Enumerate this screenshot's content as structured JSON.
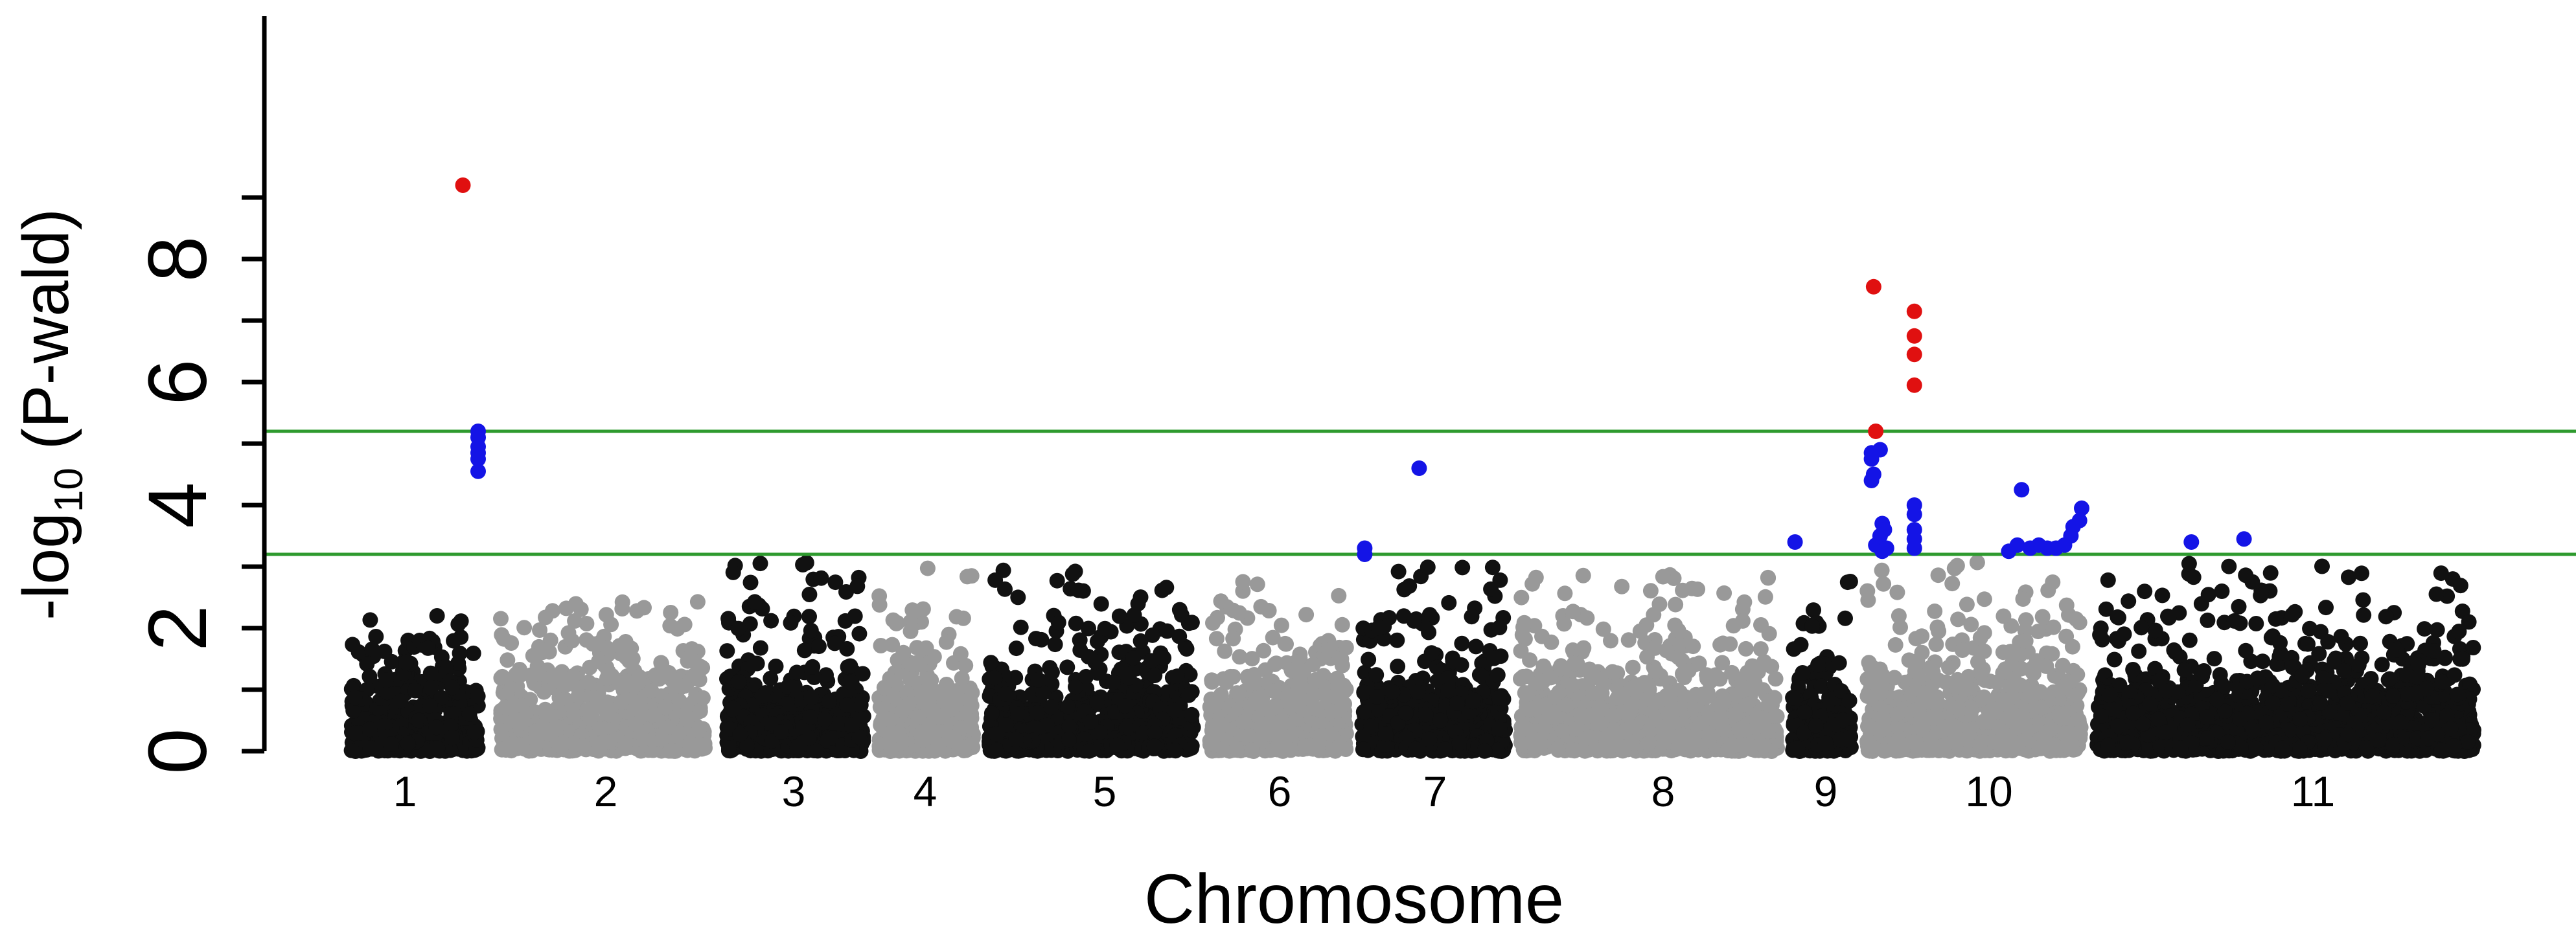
{
  "chart_data": {
    "type": "scatter",
    "title": "",
    "xlabel": "Chromosome",
    "ylabel": {
      "prefix": "-log",
      "subscript": "10",
      "suffix": " (P-wald)"
    },
    "ylim": [
      0,
      9.6
    ],
    "yticks": [
      "0",
      "2",
      "4",
      "6",
      "8"
    ],
    "grid": false,
    "legend": "none",
    "thresholds": [
      {
        "value": 5.2,
        "color": "#2e9a2e"
      },
      {
        "value": 3.2,
        "color": "#2e9a2e"
      }
    ],
    "colors": {
      "chrom_dark": "#111111",
      "chrom_light": "#999999",
      "significant": "#e01010",
      "suggestive": "#1414e6",
      "threshold": "#2e9a2e"
    },
    "chromosomes": [
      {
        "label": "1",
        "shade": "dark"
      },
      {
        "label": "2",
        "shade": "light"
      },
      {
        "label": "3",
        "shade": "dark"
      },
      {
        "label": "4",
        "shade": "light"
      },
      {
        "label": "5",
        "shade": "dark"
      },
      {
        "label": "6",
        "shade": "light"
      },
      {
        "label": "7",
        "shade": "dark"
      },
      {
        "label": "8",
        "shade": "light"
      },
      {
        "label": "9",
        "shade": "dark"
      },
      {
        "label": "10",
        "shade": "light"
      },
      {
        "label": "11",
        "shade": "dark"
      }
    ],
    "background_cap": {
      "1": 2.4,
      "2": 2.5,
      "3": 3.1,
      "4": 3.1,
      "5": 3.1,
      "6": 2.8,
      "7": 3.2,
      "8": 2.9,
      "9": 3.0,
      "10": 3.2,
      "11": 3.1
    },
    "highlighted_points": [
      {
        "chrom": "1",
        "rel_pos": 0.88,
        "y": 9.2,
        "class": "significant"
      },
      {
        "chrom": "1",
        "rel_pos": 1.0,
        "y": 5.2,
        "class": "suggestive"
      },
      {
        "chrom": "1",
        "rel_pos": 1.0,
        "y": 5.1,
        "class": "suggestive"
      },
      {
        "chrom": "1",
        "rel_pos": 1.0,
        "y": 4.95,
        "class": "suggestive"
      },
      {
        "chrom": "1",
        "rel_pos": 1.0,
        "y": 4.85,
        "class": "suggestive"
      },
      {
        "chrom": "1",
        "rel_pos": 1.0,
        "y": 4.75,
        "class": "suggestive"
      },
      {
        "chrom": "1",
        "rel_pos": 1.0,
        "y": 4.55,
        "class": "suggestive"
      },
      {
        "chrom": "7",
        "rel_pos": 0.02,
        "y": 3.3,
        "class": "suggestive"
      },
      {
        "chrom": "7",
        "rel_pos": 0.02,
        "y": 3.2,
        "class": "suggestive"
      },
      {
        "chrom": "7",
        "rel_pos": 0.4,
        "y": 4.6,
        "class": "suggestive"
      },
      {
        "chrom": "9",
        "rel_pos": 0.04,
        "y": 3.4,
        "class": "suggestive"
      },
      {
        "chrom": "10",
        "rel_pos": 0.03,
        "y": 7.55,
        "class": "significant"
      },
      {
        "chrom": "10",
        "rel_pos": 0.04,
        "y": 5.2,
        "class": "significant"
      },
      {
        "chrom": "10",
        "rel_pos": 0.22,
        "y": 7.15,
        "class": "significant"
      },
      {
        "chrom": "10",
        "rel_pos": 0.22,
        "y": 6.75,
        "class": "significant"
      },
      {
        "chrom": "10",
        "rel_pos": 0.22,
        "y": 6.45,
        "class": "significant"
      },
      {
        "chrom": "10",
        "rel_pos": 0.22,
        "y": 5.95,
        "class": "significant"
      },
      {
        "chrom": "10",
        "rel_pos": 0.02,
        "y": 4.85,
        "class": "suggestive"
      },
      {
        "chrom": "10",
        "rel_pos": 0.02,
        "y": 4.75,
        "class": "suggestive"
      },
      {
        "chrom": "10",
        "rel_pos": 0.06,
        "y": 4.9,
        "class": "suggestive"
      },
      {
        "chrom": "10",
        "rel_pos": 0.03,
        "y": 4.5,
        "class": "suggestive"
      },
      {
        "chrom": "10",
        "rel_pos": 0.02,
        "y": 4.4,
        "class": "suggestive"
      },
      {
        "chrom": "10",
        "rel_pos": 0.07,
        "y": 3.7,
        "class": "suggestive"
      },
      {
        "chrom": "10",
        "rel_pos": 0.08,
        "y": 3.6,
        "class": "suggestive"
      },
      {
        "chrom": "10",
        "rel_pos": 0.06,
        "y": 3.5,
        "class": "suggestive"
      },
      {
        "chrom": "10",
        "rel_pos": 0.04,
        "y": 3.35,
        "class": "suggestive"
      },
      {
        "chrom": "10",
        "rel_pos": 0.07,
        "y": 3.25,
        "class": "suggestive"
      },
      {
        "chrom": "10",
        "rel_pos": 0.09,
        "y": 3.3,
        "class": "suggestive"
      },
      {
        "chrom": "10",
        "rel_pos": 0.22,
        "y": 4.0,
        "class": "suggestive"
      },
      {
        "chrom": "10",
        "rel_pos": 0.22,
        "y": 3.85,
        "class": "suggestive"
      },
      {
        "chrom": "10",
        "rel_pos": 0.22,
        "y": 3.6,
        "class": "suggestive"
      },
      {
        "chrom": "10",
        "rel_pos": 0.22,
        "y": 3.45,
        "class": "suggestive"
      },
      {
        "chrom": "10",
        "rel_pos": 0.22,
        "y": 3.3,
        "class": "suggestive"
      },
      {
        "chrom": "10",
        "rel_pos": 0.72,
        "y": 4.25,
        "class": "suggestive"
      },
      {
        "chrom": "10",
        "rel_pos": 0.66,
        "y": 3.25,
        "class": "suggestive"
      },
      {
        "chrom": "10",
        "rel_pos": 0.7,
        "y": 3.35,
        "class": "suggestive"
      },
      {
        "chrom": "10",
        "rel_pos": 0.76,
        "y": 3.3,
        "class": "suggestive"
      },
      {
        "chrom": "10",
        "rel_pos": 0.8,
        "y": 3.35,
        "class": "suggestive"
      },
      {
        "chrom": "10",
        "rel_pos": 0.84,
        "y": 3.3,
        "class": "suggestive"
      },
      {
        "chrom": "10",
        "rel_pos": 0.88,
        "y": 3.3,
        "class": "suggestive"
      },
      {
        "chrom": "10",
        "rel_pos": 0.92,
        "y": 3.35,
        "class": "suggestive"
      },
      {
        "chrom": "10",
        "rel_pos": 0.95,
        "y": 3.5,
        "class": "suggestive"
      },
      {
        "chrom": "10",
        "rel_pos": 0.96,
        "y": 3.65,
        "class": "suggestive"
      },
      {
        "chrom": "10",
        "rel_pos": 0.99,
        "y": 3.75,
        "class": "suggestive"
      },
      {
        "chrom": "10",
        "rel_pos": 1.0,
        "y": 3.95,
        "class": "suggestive"
      },
      {
        "chrom": "11",
        "rel_pos": 0.25,
        "y": 3.4,
        "class": "suggestive"
      },
      {
        "chrom": "11",
        "rel_pos": 0.39,
        "y": 3.45,
        "class": "suggestive"
      }
    ]
  }
}
